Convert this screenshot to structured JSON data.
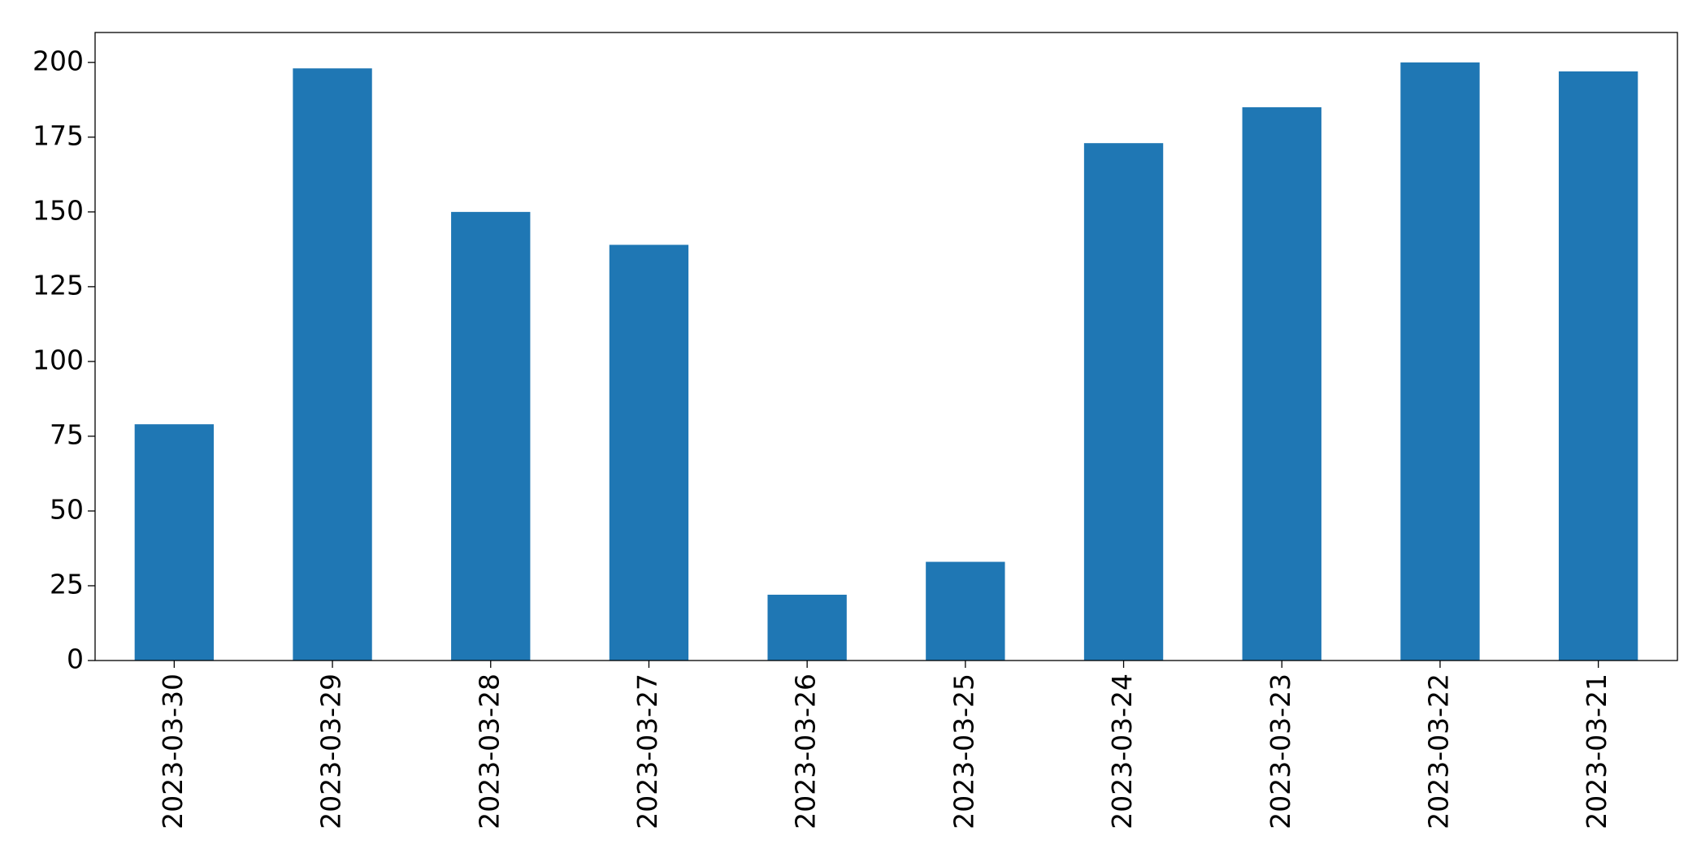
{
  "chart_data": {
    "type": "bar",
    "categories": [
      "2023-03-30",
      "2023-03-29",
      "2023-03-28",
      "2023-03-27",
      "2023-03-26",
      "2023-03-25",
      "2023-03-24",
      "2023-03-23",
      "2023-03-22",
      "2023-03-21"
    ],
    "values": [
      79,
      198,
      150,
      139,
      22,
      33,
      173,
      185,
      200,
      197
    ],
    "color": "#1f77b4",
    "ylim": [
      0,
      210
    ],
    "yticks": [
      0,
      25,
      50,
      75,
      100,
      125,
      150,
      175,
      200
    ],
    "grid": false
  }
}
